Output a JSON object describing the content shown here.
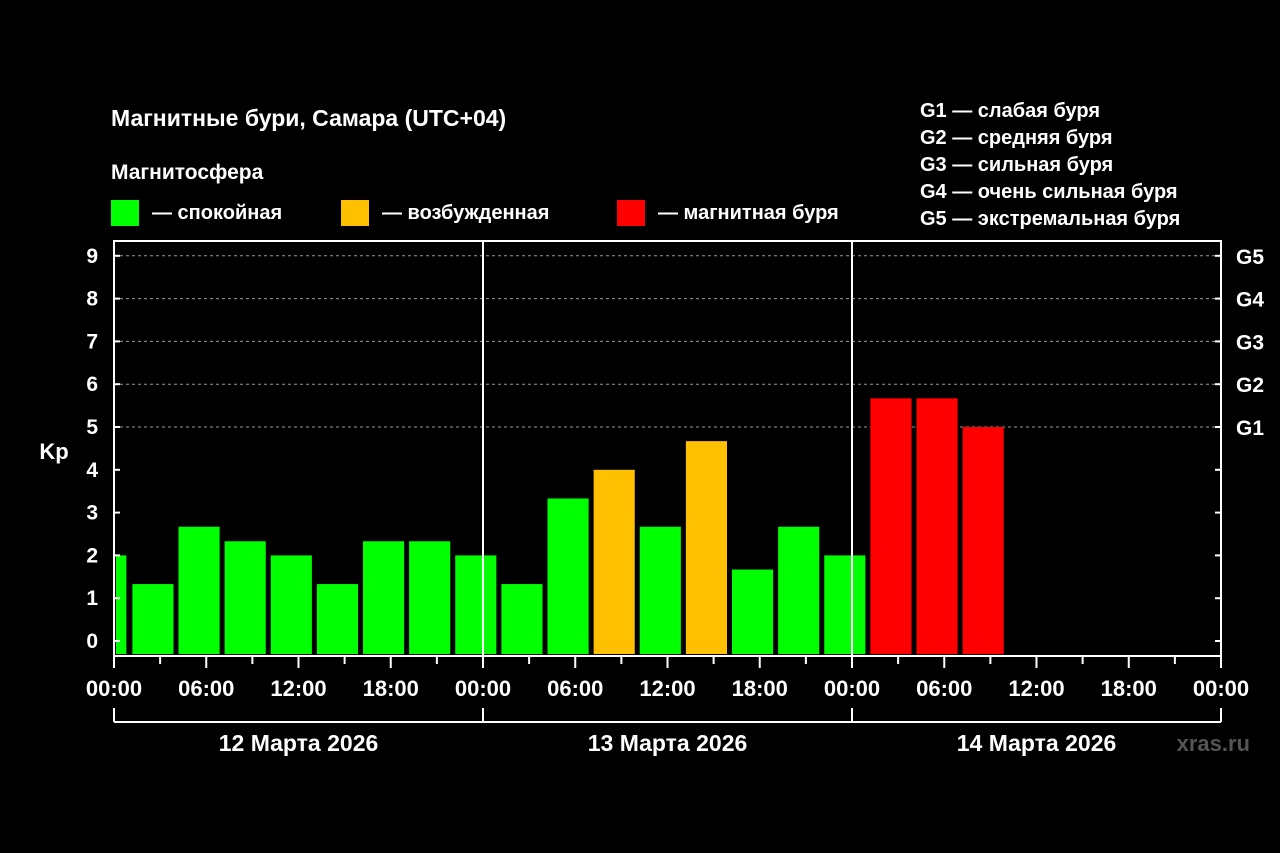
{
  "header": {
    "title": "Магнитные бури, Самара (UTC+04)",
    "legend_title": "Магнитосфера"
  },
  "legend": {
    "calm": {
      "label": "— спокойная",
      "color": "#00ff00"
    },
    "excited": {
      "label": "— возбужденная",
      "color": "#ffc000"
    },
    "storm": {
      "label": "— магнитная буря",
      "color": "#ff0000"
    }
  },
  "storm_scale": [
    "G1 — слабая буря",
    "G2 — средняя буря",
    "G3 — сильная буря",
    "G4 — очень сильная буря",
    "G5 — экстремальная буря"
  ],
  "watermark": "xras.ru",
  "chart_data": {
    "type": "bar",
    "ylabel": "Kp",
    "ylim": [
      0,
      9.3
    ],
    "y_ticks": [
      "0",
      "1",
      "2",
      "3",
      "4",
      "5",
      "6",
      "7",
      "8",
      "9"
    ],
    "right_ticks": [
      {
        "label": "G1",
        "kp": 5
      },
      {
        "label": "G2",
        "kp": 6
      },
      {
        "label": "G3",
        "kp": 7
      },
      {
        "label": "G4",
        "kp": 8
      },
      {
        "label": "G5",
        "kp": 9
      }
    ],
    "grid": "dashed at Kp 5-9",
    "x_ticks": [
      "00:00",
      "06:00",
      "12:00",
      "18:00",
      "00:00",
      "06:00",
      "12:00",
      "18:00",
      "00:00",
      "06:00",
      "12:00",
      "18:00",
      "00:00"
    ],
    "days": [
      "12 Марта 2026",
      "13 Марта 2026",
      "14 Марта 2026"
    ],
    "bars": [
      {
        "start": "12 Марта 2026 00:00",
        "kp": 2.0,
        "level": "calm"
      },
      {
        "start": "12 Марта 2026 01:00",
        "kp": 1.33,
        "level": "calm"
      },
      {
        "start": "12 Марта 2026 04:00",
        "kp": 2.67,
        "level": "calm"
      },
      {
        "start": "12 Марта 2026 07:00",
        "kp": 2.33,
        "level": "calm"
      },
      {
        "start": "12 Марта 2026 10:00",
        "kp": 2.0,
        "level": "calm"
      },
      {
        "start": "12 Марта 2026 13:00",
        "kp": 1.33,
        "level": "calm"
      },
      {
        "start": "12 Марта 2026 16:00",
        "kp": 2.33,
        "level": "calm"
      },
      {
        "start": "12 Марта 2026 19:00",
        "kp": 2.33,
        "level": "calm"
      },
      {
        "start": "12 Марта 2026 22:00",
        "kp": 2.0,
        "level": "calm"
      },
      {
        "start": "13 Марта 2026 01:00",
        "kp": 1.33,
        "level": "calm"
      },
      {
        "start": "13 Марта 2026 04:00",
        "kp": 3.33,
        "level": "calm"
      },
      {
        "start": "13 Марта 2026 07:00",
        "kp": 4.0,
        "level": "excited"
      },
      {
        "start": "13 Марта 2026 10:00",
        "kp": 2.67,
        "level": "calm"
      },
      {
        "start": "13 Марта 2026 13:00",
        "kp": 4.67,
        "level": "excited"
      },
      {
        "start": "13 Марта 2026 16:00",
        "kp": 1.67,
        "level": "calm"
      },
      {
        "start": "13 Марта 2026 19:00",
        "kp": 2.67,
        "level": "calm"
      },
      {
        "start": "13 Марта 2026 22:00",
        "kp": 2.0,
        "level": "calm"
      },
      {
        "start": "14 Марта 2026 01:00",
        "kp": 5.67,
        "level": "storm"
      },
      {
        "start": "14 Марта 2026 04:00",
        "kp": 5.67,
        "level": "storm"
      },
      {
        "start": "14 Марта 2026 07:00",
        "kp": 5.0,
        "level": "storm"
      }
    ]
  }
}
